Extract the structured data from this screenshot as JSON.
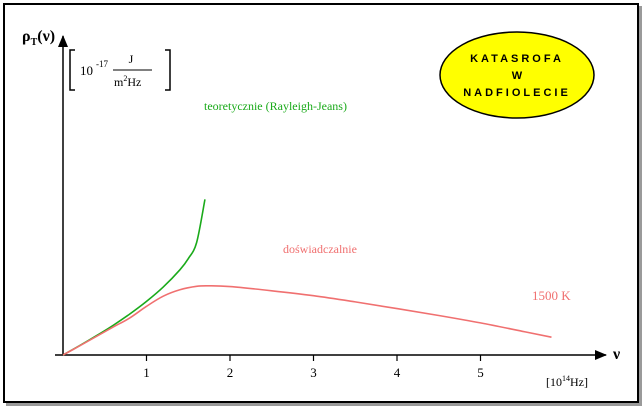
{
  "chart_data": {
    "type": "line",
    "title": "",
    "ylabel": {
      "main": "ρ",
      "sub": "T",
      "arg": "(ν)"
    },
    "yunit": {
      "exp": "-17",
      "base": "10",
      "num": "J",
      "den_m": "m",
      "den_sup": "2",
      "den_hz": "Hz"
    },
    "xlabel": "ν",
    "xunit": {
      "base": "[10",
      "sup": "14",
      "end": "Hz]"
    },
    "x_ticks": [
      "1",
      "2",
      "3",
      "4",
      "5"
    ],
    "xlim": [
      0,
      5.8
    ],
    "ylim": [
      0,
      6.4
    ],
    "series": [
      {
        "name": "teoretycznie (Rayleigh-Jeans)",
        "color": "#1aaa1a",
        "x": [
          0,
          0.2,
          0.4,
          0.6,
          0.8,
          1.0,
          1.2,
          1.4,
          1.5,
          1.6,
          1.7
        ],
        "y": [
          0,
          0.38,
          0.78,
          1.2,
          1.66,
          2.17,
          2.75,
          3.45,
          3.9,
          4.55,
          6.3
        ]
      },
      {
        "name": "doświadczalnie",
        "color": "#f07070",
        "x": [
          0,
          0.2,
          0.4,
          0.6,
          0.8,
          1.0,
          1.2,
          1.4,
          1.6,
          1.75,
          2.0,
          2.5,
          3.0,
          3.5,
          4.0,
          4.5,
          5.0,
          5.5,
          5.85
        ],
        "y": [
          0,
          0.37,
          0.75,
          1.13,
          1.5,
          1.97,
          2.38,
          2.64,
          2.78,
          2.8,
          2.77,
          2.6,
          2.4,
          2.15,
          1.88,
          1.6,
          1.3,
          0.96,
          0.72
        ]
      }
    ],
    "annotations": {
      "theory_label": "teoretycznie (Rayleigh-Jeans)",
      "experiment_label": "doświadczalnie",
      "temperature_label": "1500 K"
    }
  },
  "badge": {
    "line1": "KATASROFA",
    "line2": "W",
    "line3": "NADFIOLECIE",
    "fill": "#ffff00"
  }
}
